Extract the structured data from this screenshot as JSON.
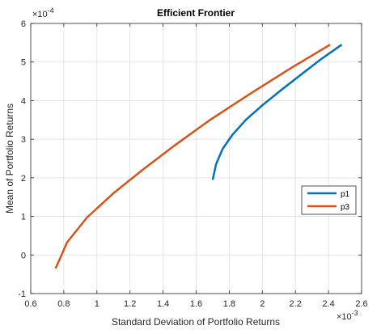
{
  "chart_data": {
    "type": "line",
    "title": "Efficient Frontier",
    "xlabel": "Standard Deviation of Portfolio Returns",
    "ylabel": "Mean of Portfolio Returns",
    "x_multiplier": "×10",
    "x_exponent": "-3",
    "y_multiplier": "×10",
    "y_exponent": "-4",
    "xlim": [
      0.6,
      2.6
    ],
    "ylim": [
      -1,
      6
    ],
    "xticks": [
      "0.6",
      "0.8",
      "1",
      "1.2",
      "1.4",
      "1.6",
      "1.8",
      "2",
      "2.2",
      "2.4",
      "2.6"
    ],
    "yticks": [
      "-1",
      "0",
      "1",
      "2",
      "3",
      "4",
      "5",
      "6"
    ],
    "grid": true,
    "legend_position": "right",
    "series": [
      {
        "name": "p1",
        "color": "#0072BD",
        "x": [
          1.7,
          1.72,
          1.76,
          1.82,
          1.9,
          2.0,
          2.11,
          2.23,
          2.35,
          2.48
        ],
        "y": [
          1.95,
          2.35,
          2.75,
          3.12,
          3.5,
          3.88,
          4.26,
          4.66,
          5.06,
          5.45
        ]
      },
      {
        "name": "p3",
        "color": "#D95319",
        "x": [
          0.75,
          0.82,
          0.94,
          1.1,
          1.28,
          1.47,
          1.68,
          1.92,
          2.16,
          2.41
        ],
        "y": [
          -0.35,
          0.33,
          0.97,
          1.6,
          2.22,
          2.84,
          3.49,
          4.16,
          4.81,
          5.45
        ]
      }
    ]
  }
}
